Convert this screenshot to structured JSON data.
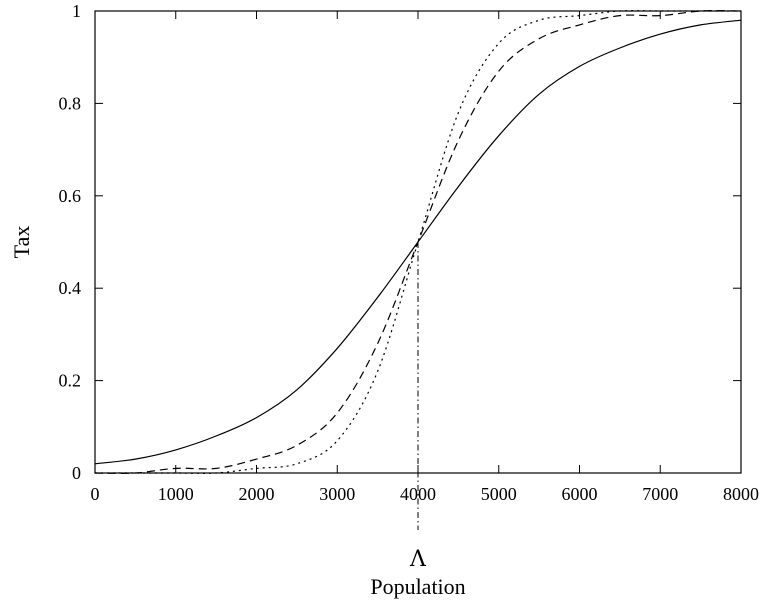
{
  "chart_data": {
    "type": "line",
    "xlabel": "Population",
    "ylabel": "Tax",
    "xlim": [
      0,
      8000
    ],
    "ylim": [
      0,
      1
    ],
    "x_ticks": [
      0,
      1000,
      2000,
      3000,
      4000,
      5000,
      6000,
      7000,
      8000
    ],
    "y_ticks": [
      0,
      0.2,
      0.4,
      0.6,
      0.8,
      1
    ],
    "y_tick_labels": [
      "0",
      "0.2",
      "0.4",
      "0.6",
      "0.8",
      "1"
    ],
    "x_tick_labels": [
      "0",
      "1000",
      "2000",
      "3000",
      "4000",
      "5000",
      "6000",
      "7000",
      "8000"
    ],
    "grid": false,
    "legend": "none",
    "marker": {
      "label": "Λ",
      "x": 4000
    },
    "series": [
      {
        "style": "solid",
        "x": [
          0,
          500,
          1000,
          1500,
          2000,
          2500,
          3000,
          3500,
          4000,
          4500,
          5000,
          5500,
          6000,
          6500,
          7000,
          7500,
          8000
        ],
        "values": [
          0.02,
          0.03,
          0.05,
          0.08,
          0.12,
          0.18,
          0.27,
          0.38,
          0.5,
          0.62,
          0.73,
          0.82,
          0.88,
          0.92,
          0.95,
          0.97,
          0.98
        ]
      },
      {
        "style": "dashed",
        "x": [
          0,
          500,
          1000,
          1500,
          2000,
          2500,
          3000,
          3500,
          4000,
          4500,
          5000,
          5500,
          6000,
          6500,
          7000,
          7500,
          8000
        ],
        "values": [
          0.0,
          0.0,
          0.01,
          0.01,
          0.03,
          0.06,
          0.13,
          0.28,
          0.5,
          0.72,
          0.87,
          0.94,
          0.97,
          0.99,
          0.99,
          1.0,
          1.0
        ]
      },
      {
        "style": "dotted",
        "x": [
          0,
          500,
          1000,
          1500,
          2000,
          2500,
          3000,
          3500,
          4000,
          4500,
          5000,
          5500,
          6000,
          6500,
          7000,
          7500,
          8000
        ],
        "values": [
          0.0,
          0.0,
          0.0,
          0.0,
          0.01,
          0.02,
          0.07,
          0.22,
          0.5,
          0.78,
          0.93,
          0.98,
          0.99,
          1.0,
          1.0,
          1.0,
          1.0
        ]
      }
    ]
  }
}
